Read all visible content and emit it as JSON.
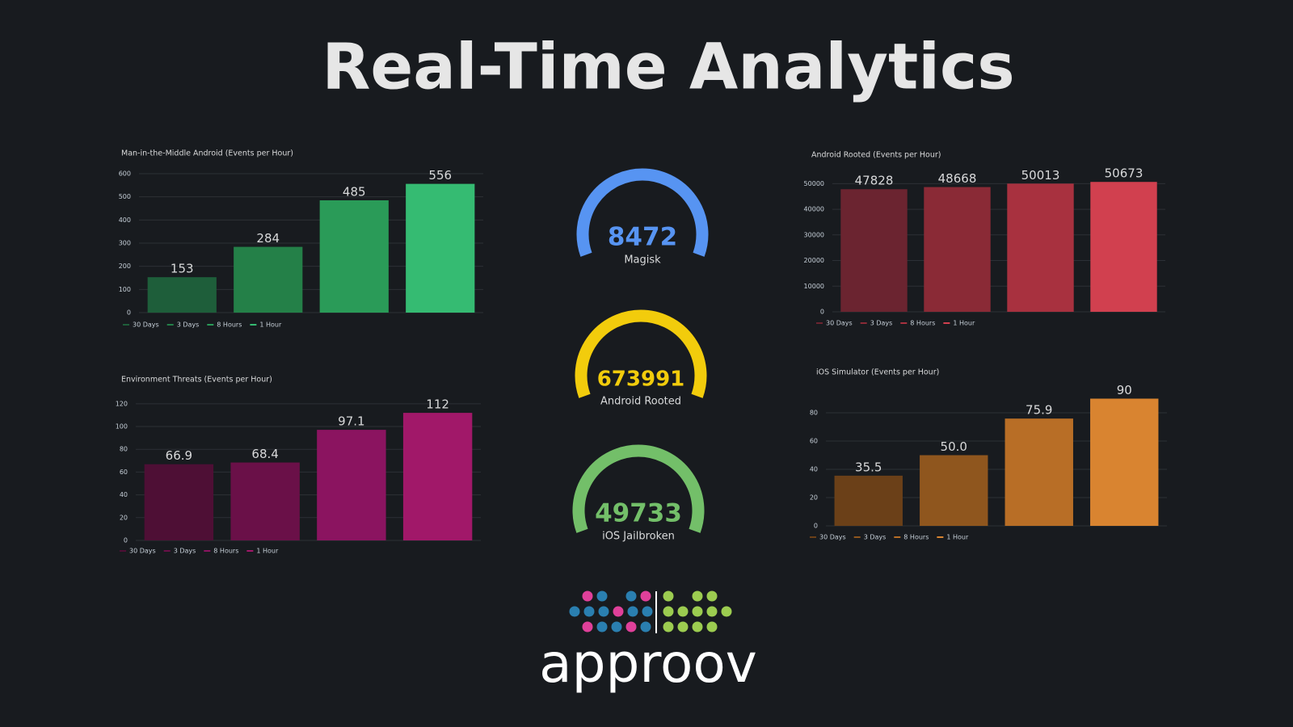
{
  "title": "Real-Time Analytics",
  "logo": "approov",
  "chart_data": [
    {
      "type": "bar",
      "title": "Man-in-the-Middle Android (Events per Hour)",
      "categories": [
        "30 Days",
        "3 Days",
        "8 Hours",
        "1 Hour"
      ],
      "values": [
        153,
        284,
        485,
        556
      ],
      "colors": [
        "#1e5e3a",
        "#248048",
        "#2a9b58",
        "#35bb72"
      ],
      "ylim": [
        0,
        600
      ],
      "yticks": [
        0,
        100,
        200,
        300,
        400,
        500,
        600
      ],
      "grid": true,
      "legend": "bottom"
    },
    {
      "type": "bar",
      "title": "Android Rooted (Events per Hour)",
      "categories": [
        "30 Days",
        "3 Days",
        "8 Hours",
        "1 Hour"
      ],
      "values": [
        47828,
        48668,
        50013,
        50673
      ],
      "colors": [
        "#6b2430",
        "#8a2a36",
        "#a8313f",
        "#d1404f"
      ],
      "ylim": [
        0,
        52000
      ],
      "yticks": [
        0,
        10000,
        20000,
        30000,
        40000,
        50000
      ],
      "grid": true,
      "legend": "bottom"
    },
    {
      "type": "bar",
      "title": "Environment Threats (Events per Hour)",
      "categories": [
        "30 Days",
        "3 Days",
        "8 Hours",
        "1 Hour"
      ],
      "values": [
        66.9,
        68.4,
        97.1,
        112
      ],
      "colors": [
        "#4e0f35",
        "#6a1048",
        "#8b1460",
        "#a11869"
      ],
      "ylim": [
        0,
        122
      ],
      "yticks": [
        0,
        20,
        40,
        60,
        80,
        100,
        120
      ],
      "grid": true,
      "legend": "bottom"
    },
    {
      "type": "bar",
      "title": "iOS Simulator (Events per Hour)",
      "categories": [
        "30 Days",
        "3 Days",
        "8 Hours",
        "1 Hour"
      ],
      "values": [
        35.5,
        50,
        75.9,
        90
      ],
      "value_labels": [
        "35.5",
        "50.0",
        "75.9",
        "90"
      ],
      "colors": [
        "#6b4018",
        "#8f561e",
        "#b86e26",
        "#d98430"
      ],
      "ylim": [
        0,
        92
      ],
      "yticks": [
        0,
        20,
        40,
        60,
        80
      ],
      "grid": true,
      "legend": "bottom"
    },
    {
      "type": "gauge",
      "value": 8472,
      "label": "Magisk",
      "color": "#5794f2"
    },
    {
      "type": "gauge",
      "value": 673991,
      "label": "Android Rooted",
      "color": "#f2cc0c"
    },
    {
      "type": "gauge",
      "value": 49733,
      "label": "iOS Jailbroken",
      "color": "#73bf69"
    }
  ]
}
